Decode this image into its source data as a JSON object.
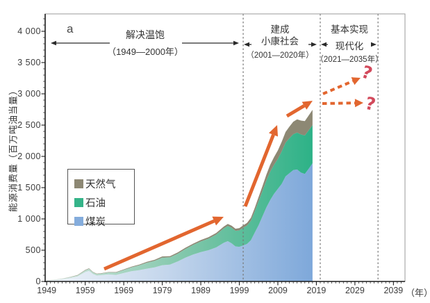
{
  "panel_label": "a",
  "axes": {
    "y_title": "能源消费量（百万吨油当量）",
    "x_unit": "（年）",
    "y_tick_labels": [
      "0",
      "500",
      "1 000",
      "1 500",
      "2 000",
      "2 500",
      "3 000",
      "3 500",
      "4 000"
    ],
    "x_tick_labels": [
      "1949",
      "1959",
      "1969",
      "1979",
      "1989",
      "1999",
      "2009",
      "2019",
      "2029",
      "2039"
    ]
  },
  "periods": [
    {
      "title_lines": [
        "解决温饱"
      ],
      "range": "（1949—2000年）",
      "start_year": 1949,
      "end_year": 2000
    },
    {
      "title_lines": [
        "建成",
        "小康社会"
      ],
      "range": "（2001—2020年）",
      "start_year": 2001,
      "end_year": 2020
    },
    {
      "title_lines": [
        "基本实现",
        "现代化"
      ],
      "range": "（2021—2035年）",
      "start_year": 2021,
      "end_year": 2035
    }
  ],
  "legend": {
    "items": [
      {
        "label": "天然气",
        "color": "#8d8874"
      },
      {
        "label": "石油",
        "color": "#35b489"
      },
      {
        "label": "煤炭",
        "color": "#84acdc"
      }
    ]
  },
  "forecast": {
    "question_mark_1": "?",
    "question_mark_2": "?"
  },
  "colors": {
    "trend_arrow": "#e2662f",
    "question_mark": "#d2495b",
    "coal_left": "#eff4f9",
    "coal_right": "#7ea8da",
    "oil_left": "#cfe4da",
    "oil_right": "#2db287",
    "gas": "#8d8874",
    "dashed_line": "#777777",
    "axis": "#1a1a1a",
    "frame": "#999999"
  },
  "chart_data": {
    "type": "area",
    "stacked": true,
    "ylabel": "能源消费量（百万吨油当量）",
    "x_unit_label": "（年）",
    "x_ticks": [
      1949,
      1959,
      1969,
      1979,
      1989,
      1999,
      2009,
      2019,
      2029,
      2039
    ],
    "y_ticks": [
      0,
      500,
      1000,
      1500,
      2000,
      2500,
      3000,
      3500,
      4000
    ],
    "xlim": [
      1948.6,
      2042
    ],
    "ylim": [
      0,
      4278
    ],
    "grid": false,
    "legend_position": "inside-left",
    "milestone_vlines_years": [
      2000,
      2020,
      2035
    ],
    "years": [
      1949,
      1951,
      1953,
      1955,
      1957,
      1959,
      1960,
      1961,
      1962,
      1963,
      1965,
      1967,
      1969,
      1971,
      1973,
      1975,
      1977,
      1979,
      1981,
      1983,
      1985,
      1987,
      1989,
      1991,
      1993,
      1995,
      1996,
      1997,
      1998,
      1999,
      2000,
      2001,
      2002,
      2003,
      2004,
      2005,
      2006,
      2007,
      2008,
      2009,
      2010,
      2011,
      2012,
      2013,
      2014,
      2015,
      2016,
      2017,
      2018
    ],
    "series": [
      {
        "name": "煤炭",
        "values": [
          15,
          22,
          35,
          55,
          80,
          150,
          170,
          120,
          95,
          100,
          112,
          105,
          135,
          165,
          180,
          205,
          225,
          260,
          270,
          320,
          380,
          430,
          470,
          500,
          545,
          620,
          645,
          610,
          560,
          555,
          575,
          600,
          660,
          780,
          900,
          1040,
          1180,
          1300,
          1400,
          1480,
          1560,
          1680,
          1730,
          1780,
          1790,
          1740,
          1720,
          1800,
          1890
        ]
      },
      {
        "name": "石油",
        "values": [
          3,
          5,
          8,
          13,
          18,
          28,
          33,
          27,
          24,
          26,
          32,
          38,
          50,
          62,
          78,
          95,
          105,
          122,
          118,
          125,
          140,
          155,
          170,
          185,
          205,
          230,
          243,
          250,
          250,
          262,
          285,
          295,
          310,
          340,
          385,
          405,
          430,
          455,
          465,
          480,
          520,
          540,
          560,
          575,
          590,
          610,
          615,
          615,
          610
        ]
      },
      {
        "name": "天然气",
        "values": [
          1,
          1,
          2,
          3,
          4,
          6,
          7,
          6,
          5,
          5,
          6,
          7,
          8,
          10,
          12,
          14,
          16,
          18,
          17,
          18,
          19,
          20,
          22,
          24,
          26,
          29,
          31,
          32,
          33,
          35,
          38,
          42,
          48,
          56,
          66,
          78,
          92,
          108,
          122,
          136,
          152,
          170,
          185,
          200,
          212,
          222,
          230,
          238,
          245
        ]
      }
    ]
  }
}
